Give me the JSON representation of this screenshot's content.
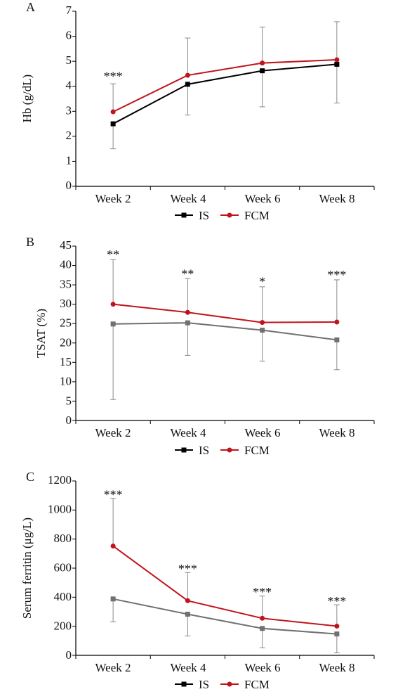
{
  "chart_data": [
    {
      "type": "line",
      "panel_label": "A",
      "categories": [
        "Week 2",
        "Week 4",
        "Week 6",
        "Week 8"
      ],
      "ylabel": "Hb (g/dL)",
      "ylim": [
        0,
        7
      ],
      "yticks": [
        "0",
        "1",
        "2",
        "3",
        "4",
        "5",
        "6",
        "7"
      ],
      "yticks_values": [
        0,
        1,
        2,
        3,
        4,
        5,
        6,
        7
      ],
      "legend_position": "bottom",
      "series": [
        {
          "name": "IS",
          "color": "#000000",
          "marker": "square",
          "values": [
            2.5,
            4.08,
            4.62,
            4.88
          ],
          "err_low": [
            1.5,
            2.85,
            3.18,
            3.33
          ],
          "err_high": null
        },
        {
          "name": "FCM",
          "color": "#c0141c",
          "marker": "circle",
          "values": [
            2.98,
            4.44,
            4.93,
            5.06
          ],
          "err_low": null,
          "err_high": [
            4.1,
            5.93,
            6.37,
            6.58
          ]
        }
      ],
      "annotations": [
        {
          "category": "Week 2",
          "text": "***",
          "at": 4.4
        }
      ]
    },
    {
      "type": "line",
      "panel_label": "B",
      "categories": [
        "Week 2",
        "Week 4",
        "Week 6",
        "Week 8"
      ],
      "ylabel": "TSAT (%)",
      "ylim": [
        0,
        45
      ],
      "yticks": [
        "0",
        "5",
        "10",
        "15",
        "20",
        "25",
        "30",
        "35",
        "40",
        "45"
      ],
      "yticks_values": [
        0,
        5,
        10,
        15,
        20,
        25,
        30,
        35,
        40,
        45
      ],
      "legend_position": "bottom",
      "series": [
        {
          "name": "IS",
          "color": "#707070",
          "marker": "square",
          "values": [
            24.9,
            25.2,
            23.3,
            20.8
          ],
          "err_low": [
            5.4,
            16.8,
            15.3,
            13.1
          ],
          "err_high": null
        },
        {
          "name": "FCM",
          "color": "#c0141c",
          "marker": "circle",
          "values": [
            30.0,
            27.9,
            25.3,
            25.4
          ],
          "err_low": null,
          "err_high": [
            41.5,
            36.6,
            34.5,
            36.3
          ]
        }
      ],
      "annotations": [
        {
          "category": "Week 2",
          "text": "**",
          "at": 42.8
        },
        {
          "category": "Week 4",
          "text": "**",
          "at": 37.8
        },
        {
          "category": "Week 6",
          "text": "*",
          "at": 35.8
        },
        {
          "category": "Week 8",
          "text": "***",
          "at": 37.6
        }
      ]
    },
    {
      "type": "line",
      "panel_label": "C",
      "categories": [
        "Week 2",
        "Week 4",
        "Week 6",
        "Week 8"
      ],
      "ylabel": "Serum ferritin (μg/L)",
      "ylim": [
        0,
        1200
      ],
      "yticks": [
        "0",
        "200",
        "400",
        "600",
        "800",
        "1000",
        "1200"
      ],
      "yticks_values": [
        0,
        200,
        400,
        600,
        800,
        1000,
        1200
      ],
      "legend_position": "bottom",
      "series": [
        {
          "name": "IS",
          "color": "#707070",
          "marker": "square",
          "values": [
            388,
            283,
            185,
            147
          ],
          "err_low": [
            230,
            133,
            52,
            17
          ],
          "err_high": null
        },
        {
          "name": "FCM",
          "color": "#c0141c",
          "marker": "circle",
          "values": [
            752,
            376,
            255,
            201
          ],
          "err_low": null,
          "err_high": [
            1080,
            570,
            408,
            348
          ]
        }
      ],
      "annotations": [
        {
          "category": "Week 2",
          "text": "***",
          "at": 1105
        },
        {
          "category": "Week 4",
          "text": "***",
          "at": 595
        },
        {
          "category": "Week 6",
          "text": "***",
          "at": 435
        },
        {
          "category": "Week 8",
          "text": "***",
          "at": 372
        }
      ]
    }
  ]
}
